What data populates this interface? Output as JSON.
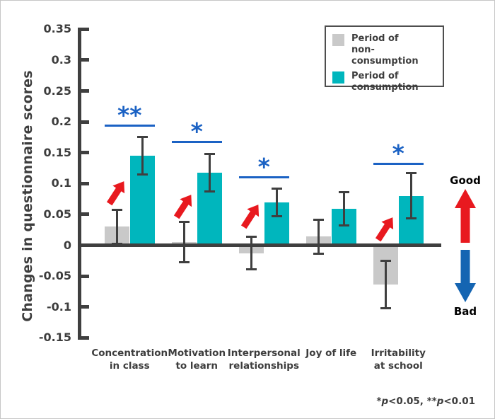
{
  "colors": {
    "non_consumption_bar": "#c9c9c9",
    "consumption_bar": "#00b6bd",
    "axis": "#3f3f3f",
    "text": "#3d3d3d",
    "significance_blue": "#1b62c4",
    "arrow_red": "#e8191f",
    "arrow_blue": "#1565b2"
  },
  "legend": {
    "items": [
      {
        "line1": "Period of",
        "line2": "non-consumption",
        "color": "#c9c9c9"
      },
      {
        "line1": "Period of",
        "line2": "consumption",
        "color": "#00b6bd"
      }
    ]
  },
  "annotations": {
    "good": "Good",
    "bad": "Bad"
  },
  "footnote": {
    "text": "*p<0.05, **p<0.01",
    "parts": [
      {
        "text": "*",
        "italic": false
      },
      {
        "text": "p",
        "italic": true
      },
      {
        "text": "<0.05, ",
        "italic": false
      },
      {
        "text": "**",
        "italic": false
      },
      {
        "text": "p",
        "italic": true
      },
      {
        "text": "<0.01",
        "italic": false
      }
    ]
  },
  "chart_data": {
    "type": "bar",
    "title": "",
    "ylabel": "Changes in questionnaire scores",
    "xlabel": "",
    "ylim": [
      -0.15,
      0.35
    ],
    "grid": false,
    "legend_position": "top-right",
    "ytick_values": [
      0.35,
      0.3,
      0.25,
      0.2,
      0.15,
      0.1,
      0.05,
      0,
      -0.05,
      -0.1,
      -0.15
    ],
    "ytick_labels": [
      "0.35",
      "0.3",
      "0.25",
      "0.2",
      "0.15",
      "0.1",
      "0.05",
      "0",
      "-0.05",
      "-0.1",
      "-0.15"
    ],
    "categories": [
      [
        "Concentration",
        "in class"
      ],
      [
        "Motivation",
        "to learn"
      ],
      [
        "Interpersonal",
        "relationships"
      ],
      [
        "Joy of life"
      ],
      [
        "Irritability",
        "at school"
      ]
    ],
    "series": [
      {
        "name": "Period of non-consumption",
        "color": "#c9c9c9",
        "values": [
          0.03,
          0.005,
          -0.013,
          0.014,
          -0.064
        ],
        "errors": [
          0.028,
          0.033,
          0.027,
          0.028,
          0.039
        ]
      },
      {
        "name": "Period of consumption",
        "color": "#00b6bd",
        "values": [
          0.145,
          0.118,
          0.069,
          0.059,
          0.08
        ],
        "errors": [
          0.031,
          0.031,
          0.023,
          0.028,
          0.037
        ]
      }
    ],
    "significance": [
      {
        "group": 0,
        "label": "**",
        "line_value": 0.195
      },
      {
        "group": 1,
        "label": "*",
        "line_value": 0.169
      },
      {
        "group": 2,
        "label": "*",
        "line_value": 0.112
      },
      {
        "group": 4,
        "label": "*",
        "line_value": 0.134
      }
    ],
    "improvement_arrow_groups": [
      0,
      1,
      2,
      4
    ]
  }
}
